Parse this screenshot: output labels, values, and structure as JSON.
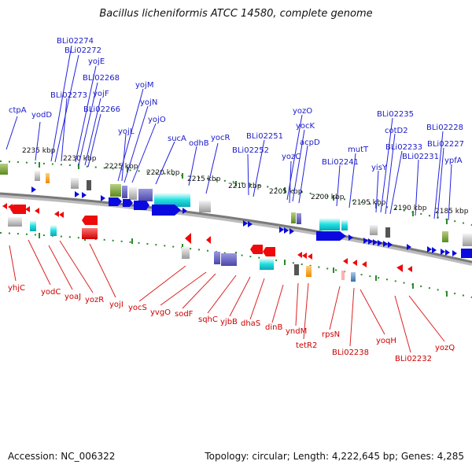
{
  "header": {
    "title": "Bacillus licheniformis ATCC 14580, complete genome"
  },
  "footer": {
    "accession": "Accession: NC_006322",
    "topology": "Topology: circular; Length: 4,222,645 bp; Genes: 4,285"
  },
  "colors": {
    "plus_label": "#1a1ac8",
    "minus_label": "#cc0000",
    "leader_plus": "#2222dd",
    "leader_minus": "#dd2222",
    "gene_plus": "#0a0ae0",
    "gene_minus": "#ee0a0a",
    "axis_gray": "#888888",
    "tick_green": "#2a8a2a"
  },
  "ruler": {
    "labels": [
      "2235 kbp",
      "2230 kbp",
      "2225 kbp",
      "2220 kbp",
      "2215 kbp",
      "2210 kbp",
      "2205 kbp",
      "2200 kbp",
      "2195 kbp",
      "2190 kbp",
      "2185 kbp"
    ]
  },
  "genes_plus": [
    "ctpA",
    "yodD",
    "BLi02274",
    "BLi02272",
    "yojE",
    "BLi02268",
    "BLi02273",
    "yojF",
    "BLi02266",
    "yojM",
    "yojN",
    "yojL",
    "yojO",
    "sucA",
    "odhB",
    "yocR",
    "BLi02251",
    "BLi02252",
    "yozO",
    "yocK",
    "acpD",
    "yozC",
    "BLi02241",
    "mutT",
    "BLi02235",
    "cotD2",
    "yisY",
    "BLi02233",
    "BLi02231",
    "BLi02228",
    "BLi02227",
    "ypfA"
  ],
  "genes_minus": [
    "yhjC",
    "yodC",
    "yoaJ",
    "yozR",
    "yojI",
    "yocS",
    "yvgO",
    "sodF",
    "sqhC",
    "yjbB",
    "dhaS",
    "dinB",
    "yndM",
    "tetR2",
    "rpsN",
    "BLi02238",
    "yoqH",
    "BLi02232",
    "yozQ"
  ]
}
